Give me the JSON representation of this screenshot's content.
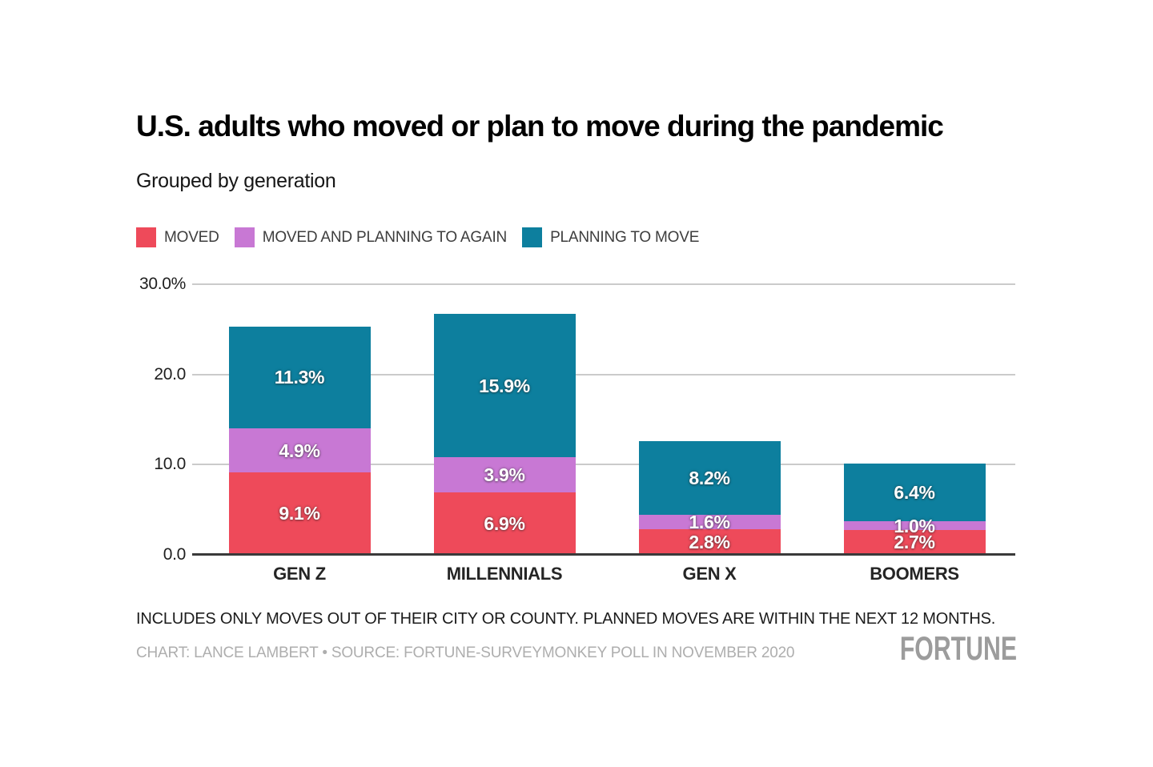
{
  "chart_data": {
    "type": "bar",
    "stacked": true,
    "title": "U.S. adults who moved or plan to move during the pandemic",
    "subtitle": "Grouped by generation",
    "categories": [
      "GEN Z",
      "MILLENNIALS",
      "GEN X",
      "BOOMERS"
    ],
    "series": [
      {
        "name": "MOVED",
        "color": "#ee4a5a",
        "values": [
          9.1,
          6.9,
          2.8,
          2.7
        ]
      },
      {
        "name": "MOVED AND PLANNING TO AGAIN",
        "color": "#c878d4",
        "values": [
          4.9,
          3.9,
          1.6,
          1.0
        ]
      },
      {
        "name": "PLANNING TO MOVE",
        "color": "#0d7f9e",
        "values": [
          11.3,
          15.9,
          8.2,
          6.4
        ]
      }
    ],
    "stack_order": "bottom-to-top",
    "value_suffix": "%",
    "y_ticks": [
      {
        "label": "0.0",
        "value": 0
      },
      {
        "label": "10.0",
        "value": 10
      },
      {
        "label": "20.0",
        "value": 20
      },
      {
        "label": "30.0%",
        "value": 30
      }
    ],
    "ylim": [
      0,
      30
    ],
    "grid": true,
    "legend_position": "top"
  },
  "footer": {
    "note": "INCLUDES ONLY MOVES OUT OF THEIR CITY OR COUNTY. PLANNED MOVES ARE WITHIN THE NEXT 12 MONTHS.",
    "credit": "CHART: LANCE LAMBERT • SOURCE: FORTUNE-SURVEYMONKEY POLL IN NOVEMBER 2020",
    "brand": "FORTUNE"
  },
  "colors": {
    "background": "#ffffff",
    "gridline": "#cbcbcb",
    "axis_baseline": "#3a3a3a",
    "bar_label_text": "#ffffff"
  }
}
